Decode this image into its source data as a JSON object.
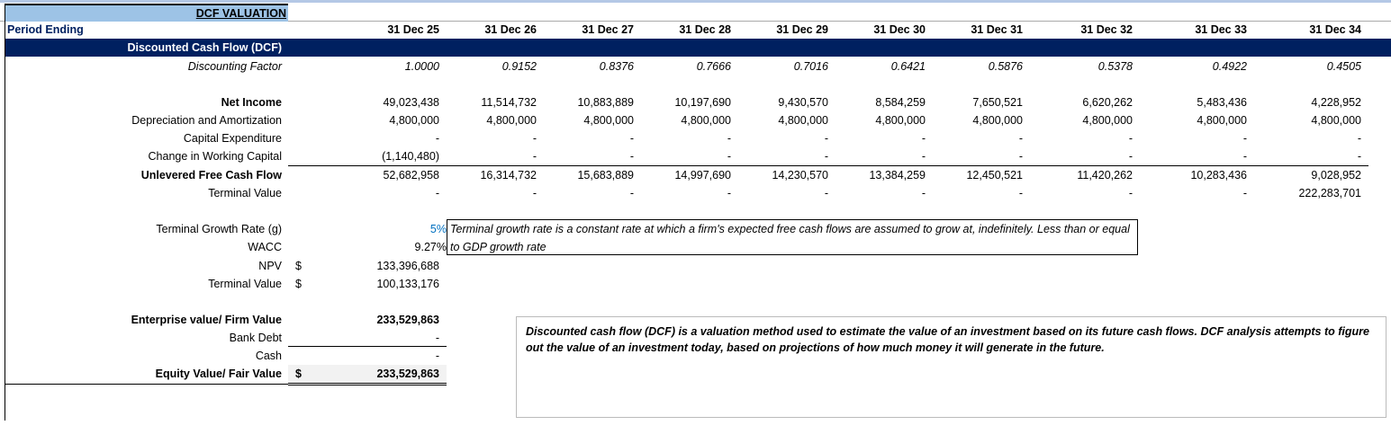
{
  "title": "DCF VALUATION",
  "period_label": "Period Ending",
  "periods": [
    "31 Dec 25",
    "31 Dec 26",
    "31 Dec 27",
    "31 Dec 28",
    "31 Dec 29",
    "31 Dec 30",
    "31 Dec 31",
    "31 Dec 32",
    "31 Dec 33",
    "31 Dec 34"
  ],
  "section_header": "Discounted Cash Flow (DCF)",
  "rows": [
    {
      "label": "Discounting Factor",
      "values": [
        "1.0000",
        "0.9152",
        "0.8376",
        "0.7666",
        "0.7016",
        "0.6421",
        "0.5876",
        "0.5378",
        "0.4922",
        "0.4505"
      ]
    },
    {
      "label": "Net Income",
      "values": [
        "49,023,438",
        "11,514,732",
        "10,883,889",
        "10,197,690",
        "9,430,570",
        "8,584,259",
        "7,650,521",
        "6,620,262",
        "5,483,436",
        "4,228,952"
      ]
    },
    {
      "label": "Depreciation and Amortization",
      "values": [
        "4,800,000",
        "4,800,000",
        "4,800,000",
        "4,800,000",
        "4,800,000",
        "4,800,000",
        "4,800,000",
        "4,800,000",
        "4,800,000",
        "4,800,000"
      ]
    },
    {
      "label": "Capital Expenditure",
      "values": [
        "-",
        "-",
        "-",
        "-",
        "-",
        "-",
        "-",
        "-",
        "-",
        "-"
      ]
    },
    {
      "label": "Change in Working Capital",
      "values": [
        "(1,140,480)",
        "-",
        "-",
        "-",
        "-",
        "-",
        "-",
        "-",
        "-",
        "-"
      ]
    },
    {
      "label": "Unlevered Free Cash Flow",
      "values": [
        "52,682,958",
        "16,314,732",
        "15,683,889",
        "14,997,690",
        "14,230,570",
        "13,384,259",
        "12,450,521",
        "11,420,262",
        "10,283,436",
        "9,028,952"
      ]
    },
    {
      "label": "Terminal Value",
      "values": [
        "-",
        "-",
        "-",
        "-",
        "-",
        "-",
        "-",
        "-",
        "-",
        "222,283,701"
      ]
    }
  ],
  "summary": [
    {
      "label": "Terminal Growth Rate (g)",
      "currency": "",
      "value": "5%"
    },
    {
      "label": "WACC",
      "currency": "",
      "value": "9.27%"
    },
    {
      "label": "NPV",
      "currency": "$",
      "value": "133,396,688"
    },
    {
      "label": "Terminal Value",
      "currency": "$",
      "value": "100,133,176"
    },
    {
      "label": "Enterprise value/ Firm Value",
      "currency": "",
      "value": "233,529,863"
    },
    {
      "label": "Bank Debt",
      "currency": "",
      "value": "-"
    },
    {
      "label": "Cash",
      "currency": "",
      "value": "-"
    },
    {
      "label": "Equity Value/ Fair Value",
      "currency": "$",
      "value": "233,529,863"
    }
  ],
  "notes": {
    "growth_note": "Terminal growth rate is a constant rate at which a firm's expected free cash flows are assumed to grow at, indefinitely. Less than or equal to GDP growth rate",
    "dcf_note": "Discounted cash flow (DCF) is a valuation method used to estimate the value of an investment based on its future cash flows. DCF analysis attempts to figure out the value of an investment today, based on projections of how much money it will generate in the future."
  },
  "colors": {
    "navy": "#002060",
    "title_bg": "#9dc3e6",
    "input_blue": "#0070c0"
  }
}
